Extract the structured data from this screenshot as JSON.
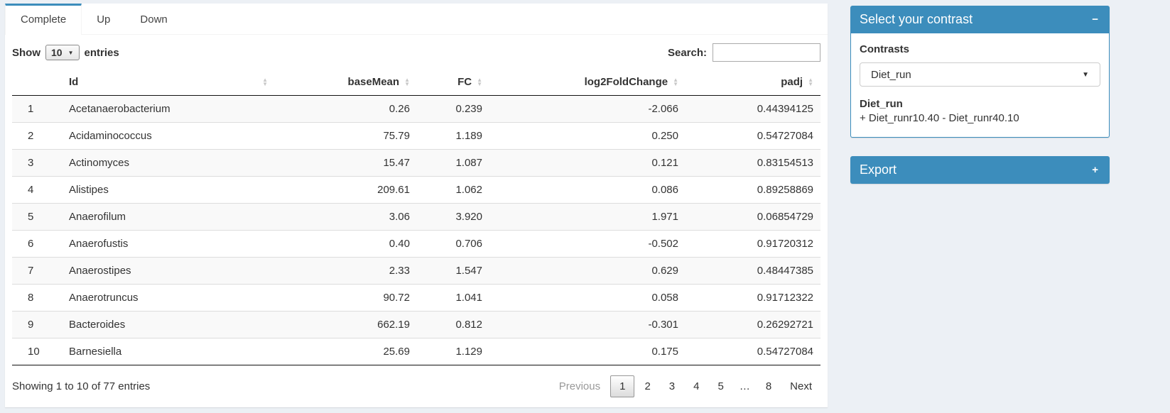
{
  "colors": {
    "primary": "#3c8dbc",
    "page_bg": "#ecf0f5"
  },
  "tabs": [
    {
      "label": "Complete",
      "active": true
    },
    {
      "label": "Up",
      "active": false
    },
    {
      "label": "Down",
      "active": false
    }
  ],
  "table_controls": {
    "show_label": "Show",
    "page_length": "10",
    "entries_label": "entries",
    "search_label": "Search:",
    "search_value": ""
  },
  "table": {
    "columns": [
      "",
      "Id",
      "baseMean",
      "FC",
      "log2FoldChange",
      "padj"
    ],
    "rows": [
      {
        "num": "1",
        "id": "Acetanaerobacterium",
        "baseMean": "0.26",
        "fc": "0.239",
        "log2fc": "-2.066",
        "padj": "0.44394125"
      },
      {
        "num": "2",
        "id": "Acidaminococcus",
        "baseMean": "75.79",
        "fc": "1.189",
        "log2fc": "0.250",
        "padj": "0.54727084"
      },
      {
        "num": "3",
        "id": "Actinomyces",
        "baseMean": "15.47",
        "fc": "1.087",
        "log2fc": "0.121",
        "padj": "0.83154513"
      },
      {
        "num": "4",
        "id": "Alistipes",
        "baseMean": "209.61",
        "fc": "1.062",
        "log2fc": "0.086",
        "padj": "0.89258869"
      },
      {
        "num": "5",
        "id": "Anaerofilum",
        "baseMean": "3.06",
        "fc": "3.920",
        "log2fc": "1.971",
        "padj": "0.06854729"
      },
      {
        "num": "6",
        "id": "Anaerofustis",
        "baseMean": "0.40",
        "fc": "0.706",
        "log2fc": "-0.502",
        "padj": "0.91720312"
      },
      {
        "num": "7",
        "id": "Anaerostipes",
        "baseMean": "2.33",
        "fc": "1.547",
        "log2fc": "0.629",
        "padj": "0.48447385"
      },
      {
        "num": "8",
        "id": "Anaerotruncus",
        "baseMean": "90.72",
        "fc": "1.041",
        "log2fc": "0.058",
        "padj": "0.91712322"
      },
      {
        "num": "9",
        "id": "Bacteroides",
        "baseMean": "662.19",
        "fc": "0.812",
        "log2fc": "-0.301",
        "padj": "0.26292721"
      },
      {
        "num": "10",
        "id": "Barnesiella",
        "baseMean": "25.69",
        "fc": "1.129",
        "log2fc": "0.175",
        "padj": "0.54727084"
      }
    ]
  },
  "footer": {
    "info": "Showing 1 to 10 of 77 entries",
    "current_page": "1",
    "pagination": [
      "Previous",
      "1",
      "2",
      "3",
      "4",
      "5",
      "…",
      "8",
      "Next"
    ]
  },
  "contrast_box": {
    "title": "Select your contrast",
    "collapse_icon": "−",
    "contrasts_label": "Contrasts",
    "selected_contrast": "Diet_run",
    "contrast_name": "Diet_run",
    "contrast_formula": "+ Diet_runr10.40 - Diet_runr40.10"
  },
  "export_box": {
    "title": "Export",
    "collapse_icon": "+"
  }
}
